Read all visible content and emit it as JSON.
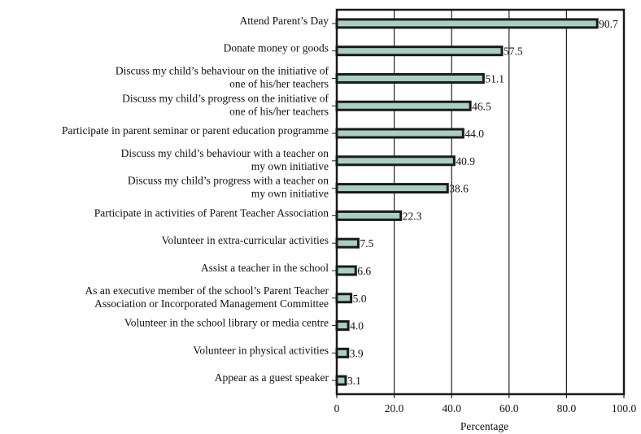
{
  "chart_data": {
    "type": "bar",
    "orientation": "horizontal",
    "categories": [
      [
        "Attend Parent’s Day"
      ],
      [
        "Donate money or goods"
      ],
      [
        "Discuss my child’s behaviour on the initiative of",
        "one of his/her teachers"
      ],
      [
        "Discuss my child’s progress on the initiative of",
        "one of his/her teachers"
      ],
      [
        "Participate in parent seminar or parent education programme"
      ],
      [
        "Discuss my child’s behaviour with a teacher on",
        "my own initiative"
      ],
      [
        "Discuss my child’s progress with a teacher on",
        "my own initiative"
      ],
      [
        "Participate in activities of Parent Teacher Association"
      ],
      [
        "Volunteer in extra-curricular activities"
      ],
      [
        "Assist a teacher in the school"
      ],
      [
        "As an executive member of the school’s Parent Teacher",
        "Association or Incorporated Management Committee"
      ],
      [
        "Volunteer in the school library or media centre"
      ],
      [
        "Volunteer in physical activities"
      ],
      [
        "Appear as a guest speaker"
      ]
    ],
    "values": [
      90.7,
      57.5,
      51.1,
      46.5,
      44.0,
      40.9,
      38.6,
      22.3,
      7.5,
      6.6,
      5.0,
      4.0,
      3.9,
      3.1
    ],
    "value_labels": [
      "90.7",
      "57.5",
      "51.1",
      "46.5",
      "44.0",
      "40.9",
      "38.6",
      "22.3",
      "7.5",
      "6.6",
      "5.0",
      "4.0",
      "3.9",
      "3.1"
    ],
    "xlabel": "Percentage",
    "xlim": [
      0,
      100
    ],
    "xticks": [
      "0",
      "20.0",
      "40.0",
      "60.0",
      "80.0",
      "100.0"
    ],
    "xtick_values": [
      0,
      20,
      40,
      60,
      80,
      100
    ],
    "grid": "vertical lines",
    "bar_color": "#a8cfc4",
    "bar_outline_color": "#1a1a1a"
  }
}
